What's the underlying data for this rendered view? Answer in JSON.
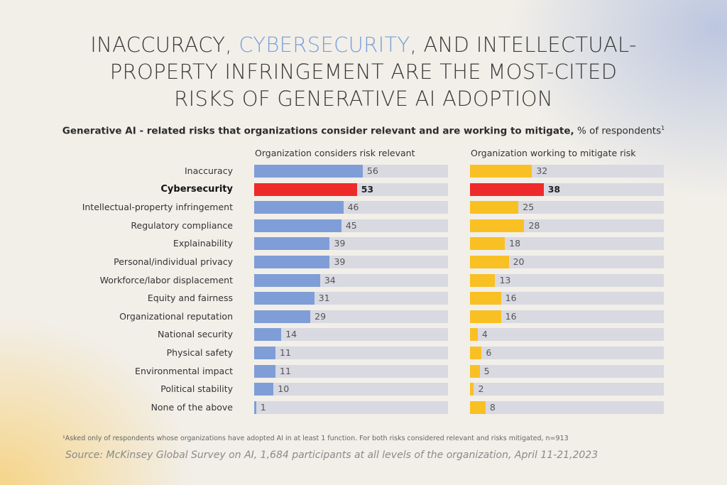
{
  "title": {
    "part1": "INACCURACY, ",
    "highlight": "CYBERSECURITY",
    "part2": ", AND INTELLECTUAL-",
    "line2": "PROPERTY INFRINGEMENT ARE THE MOST-CITED",
    "line3": "RISKS OF GENERATIVE AI ADOPTION"
  },
  "subtitle": {
    "bold": "Generative AI - related risks that organizations consider relevant and are working to mitigate,",
    "normal": " % of respondents",
    "sup": "1"
  },
  "footnote": "¹Asked only of respondents whose organizations have adopted AI in at least 1 function. For both risks considered relevant and risks mitigated, n=913",
  "source": "Source: McKinsey Global Survey on AI, 1,684 participants at all levels of the organization, April 11-21,2023",
  "colors": {
    "relevant": "#7f9ed8",
    "mitigate": "#f9c023",
    "highlight": "#ee2a2a",
    "track": "#d9d9e2"
  },
  "chart_data": {
    "type": "bar",
    "orientation": "horizontal",
    "highlight_category": "Cybersecurity",
    "categories": [
      "Inaccuracy",
      "Cybersecurity",
      "Intellectual-property infringement",
      "Regulatory compliance",
      "Explainability",
      "Personal/individual privacy",
      "Workforce/labor displacement",
      "Equity and fairness",
      "Organizational reputation",
      "National security",
      "Physical safety",
      "Environmental impact",
      "Political stability",
      "None of the above"
    ],
    "series": [
      {
        "name": "Organization considers risk relevant",
        "values": [
          56,
          53,
          46,
          45,
          39,
          39,
          34,
          31,
          29,
          14,
          11,
          11,
          10,
          1
        ]
      },
      {
        "name": "Organization working to mitigate risk",
        "values": [
          32,
          38,
          25,
          28,
          18,
          20,
          13,
          16,
          16,
          4,
          6,
          5,
          2,
          8
        ]
      }
    ],
    "xlim": [
      0,
      100
    ],
    "unit": "% of respondents"
  }
}
